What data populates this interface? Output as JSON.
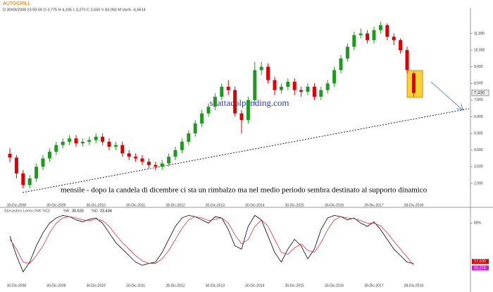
{
  "chart_data": [
    {
      "type": "candlestick",
      "title": "AUTOGRILL",
      "subtitle": "D 30/09/2008 23:59:59  O 3,775  H 4,105  L 3,270  C 3,550  V 83,093 M  Var% -6,6614",
      "annotations": [
        "scattacolpending.com",
        "mensile - dopo la candela di dicembre ci sta un rimbalzo ma nel medio periodo sembra destinato al supporto dinamico"
      ],
      "categories": [
        null,
        "30-Dic-2008",
        null,
        null,
        null,
        null,
        null,
        "30-Dic-2009",
        null,
        null,
        null,
        null,
        null,
        "30-Dic-2010",
        null,
        null,
        null,
        null,
        null,
        "30-Dic-2011",
        null,
        null,
        null,
        null,
        null,
        "28-Dic-2012",
        null,
        null,
        null,
        null,
        null,
        "30-Dic-2013",
        null,
        null,
        null,
        null,
        null,
        "30-Dic-2014",
        null,
        null,
        null,
        null,
        null,
        "30-Dic-2015",
        null,
        null,
        null,
        null,
        null,
        "30-Dic-2016",
        null,
        null,
        null,
        null,
        null,
        "29-Dic-2017",
        null,
        null,
        null,
        null,
        null,
        "28-Dic-2018"
      ],
      "open": [
        3.775,
        3.55,
        2.6,
        1.9,
        2.3,
        3.0,
        3.5,
        3.9,
        4.3,
        4.5,
        4.7,
        4.4,
        4.5,
        4.6,
        4.8,
        4.5,
        4.2,
        4.3,
        3.8,
        3.6,
        3.5,
        3.3,
        3.1,
        3.0,
        3.2,
        3.6,
        4.0,
        4.5,
        5.0,
        5.6,
        6.2,
        6.6,
        7.2,
        7.8,
        7.6,
        6.2,
        5.8,
        7.0,
        8.8,
        9.0,
        8.2,
        7.6,
        7.8,
        8.1,
        7.6,
        7.5,
        7.8,
        7.2,
        7.6,
        8.0,
        8.8,
        9.5,
        10.2,
        10.9,
        11.0,
        10.6,
        11.2,
        11.5,
        10.8,
        10.6,
        10.0,
        8.6
      ],
      "high": [
        4.105,
        3.7,
        2.8,
        2.5,
        3.2,
        3.7,
        4.1,
        4.5,
        4.7,
        4.9,
        4.9,
        4.7,
        4.8,
        5.0,
        5.0,
        4.7,
        4.5,
        4.5,
        4.0,
        3.8,
        3.7,
        3.5,
        3.3,
        3.4,
        3.8,
        4.2,
        4.7,
        5.2,
        5.8,
        6.4,
        6.8,
        7.4,
        8.0,
        8.2,
        7.8,
        6.4,
        7.2,
        9.3,
        9.3,
        9.2,
        8.4,
        8.0,
        8.3,
        8.3,
        7.8,
        8.0,
        8.0,
        7.8,
        8.2,
        9.0,
        9.7,
        10.4,
        11.1,
        11.3,
        11.2,
        11.4,
        11.7,
        11.6,
        11.0,
        10.7,
        10.2,
        8.7
      ],
      "low": [
        3.27,
        2.3,
        1.7,
        1.7,
        2.1,
        2.8,
        3.3,
        3.7,
        4.1,
        4.3,
        4.2,
        4.2,
        4.3,
        4.4,
        4.3,
        4.0,
        4.0,
        3.6,
        3.4,
        3.3,
        3.1,
        2.9,
        2.8,
        2.8,
        3.0,
        3.4,
        3.8,
        4.3,
        4.8,
        5.4,
        6.0,
        6.4,
        7.0,
        7.3,
        6.0,
        5.0,
        5.6,
        6.8,
        8.5,
        8.0,
        7.3,
        7.4,
        7.6,
        7.3,
        7.2,
        7.3,
        7.0,
        7.0,
        7.4,
        7.8,
        8.6,
        9.3,
        10.0,
        10.7,
        10.4,
        10.4,
        11.0,
        10.6,
        10.3,
        9.8,
        8.6,
        7.2
      ],
      "close": [
        3.55,
        2.6,
        1.9,
        2.3,
        3.0,
        3.5,
        3.9,
        4.3,
        4.5,
        4.7,
        4.4,
        4.5,
        4.6,
        4.8,
        4.5,
        4.2,
        4.3,
        3.8,
        3.6,
        3.5,
        3.3,
        3.1,
        3.0,
        3.2,
        3.6,
        4.0,
        4.5,
        5.0,
        5.6,
        6.2,
        6.6,
        7.2,
        7.8,
        7.6,
        6.2,
        5.8,
        7.0,
        8.8,
        9.0,
        8.2,
        7.6,
        7.8,
        8.1,
        7.6,
        7.5,
        7.8,
        7.2,
        7.6,
        8.0,
        8.8,
        9.5,
        10.2,
        10.9,
        11.0,
        10.6,
        11.2,
        11.5,
        10.8,
        10.6,
        10.0,
        8.8,
        7.43
      ],
      "up_color": "#1f9a1f",
      "down_color": "#e00000",
      "ylim": [
        0.9,
        12.5
      ],
      "yticks": [
        {
          "value": 2,
          "label": "2,000"
        },
        {
          "value": 3,
          "label": "3,000"
        },
        {
          "value": 4,
          "label": "4,000"
        },
        {
          "value": 5,
          "label": "5,000"
        },
        {
          "value": 6,
          "label": "6,000"
        },
        {
          "value": 7,
          "label": "7,000"
        },
        {
          "value": 8,
          "label": "8,000"
        },
        {
          "value": 9,
          "label": "9,000"
        },
        {
          "value": 10,
          "label": "10,000"
        },
        {
          "value": 11,
          "label": "11,000"
        }
      ],
      "last_value": {
        "value": 7.43,
        "label": "7,430"
      }
    },
    {
      "type": "line",
      "title": "Stocastico Lento (%K %D)",
      "categories": [
        null,
        "30-Dic-2008",
        null,
        null,
        null,
        null,
        null,
        "30-Dic-2009",
        null,
        null,
        null,
        null,
        null,
        "30-Dic-2010",
        null,
        null,
        null,
        null,
        null,
        "30-Dic-2011",
        null,
        null,
        null,
        null,
        null,
        "28-Dic-2012",
        null,
        null,
        null,
        null,
        null,
        "30-Dic-2013",
        null,
        null,
        null,
        null,
        null,
        "30-Dic-2014",
        null,
        null,
        null,
        null,
        null,
        "30-Dic-2015",
        null,
        null,
        null,
        null,
        null,
        "30-Dic-2016",
        null,
        null,
        null,
        null,
        null,
        "29-Dic-2017",
        null,
        null,
        null,
        null,
        null,
        "28-Dic-2018"
      ],
      "series": [
        {
          "name": "%K",
          "color": "#000000",
          "reading": {
            "value": 30.633,
            "label": "30,633"
          },
          "last": {
            "value": 17.63,
            "label": "17,630"
          },
          "values": [
            60,
            30,
            5,
            20,
            45,
            65,
            80,
            88,
            92,
            90,
            85,
            82,
            86,
            88,
            80,
            65,
            50,
            40,
            30,
            20,
            15,
            18,
            20,
            35,
            55,
            75,
            88,
            92,
            90,
            85,
            80,
            90,
            88,
            70,
            45,
            40,
            75,
            92,
            85,
            60,
            35,
            20,
            40,
            55,
            45,
            25,
            40,
            70,
            88,
            92,
            90,
            85,
            88,
            80,
            75,
            82,
            70,
            55,
            40,
            30,
            20,
            17.63
          ]
        },
        {
          "name": "%D",
          "color": "#e03040",
          "reading": {
            "value": 23.434,
            "label": "23,434"
          },
          "last": {
            "value": 15.274,
            "label": "15,274"
          },
          "values": [
            55,
            40,
            20,
            18,
            30,
            45,
            65,
            80,
            88,
            90,
            88,
            85,
            84,
            86,
            84,
            75,
            62,
            50,
            40,
            30,
            22,
            18,
            18,
            25,
            38,
            55,
            72,
            85,
            90,
            88,
            84,
            86,
            88,
            80,
            62,
            48,
            55,
            75,
            85,
            75,
            55,
            35,
            32,
            42,
            48,
            38,
            35,
            50,
            70,
            85,
            90,
            88,
            87,
            84,
            80,
            80,
            76,
            65,
            52,
            40,
            28,
            15.274
          ]
        }
      ],
      "ylim": [
        0,
        100
      ],
      "yticks": [
        {
          "value": 80,
          "label": "80%"
        }
      ]
    }
  ]
}
